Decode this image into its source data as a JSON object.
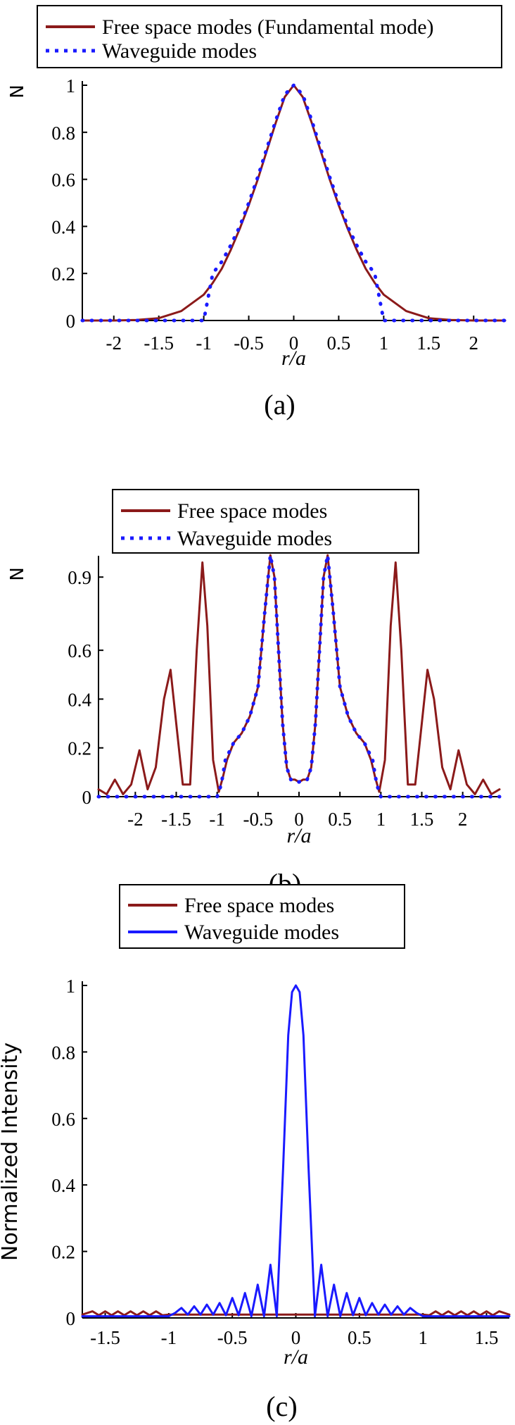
{
  "colors": {
    "free": "#8B1A1A",
    "waveguide": "#1a1aff",
    "axis": "#000000"
  },
  "chart_data": [
    {
      "id": "a",
      "type": "line",
      "panel_label": "(a)",
      "ylabel": "N",
      "xlabel": "r/a",
      "xlim": [
        -2.35,
        2.35
      ],
      "ylim": [
        0,
        1.0
      ],
      "xticks": [
        -2,
        -1.5,
        -1,
        -0.5,
        0,
        0.5,
        1,
        1.5,
        2
      ],
      "yticks": [
        0,
        0.2,
        0.4,
        0.6,
        0.8,
        1
      ],
      "grid": false,
      "legend_position": "top",
      "series": [
        {
          "name": "Free space modes (Fundamental mode)",
          "style": "solid",
          "color": "#8B1A1A",
          "x": [
            -2.35,
            -2.0,
            -1.75,
            -1.5,
            -1.25,
            -1.0,
            -0.9,
            -0.8,
            -0.7,
            -0.6,
            -0.5,
            -0.4,
            -0.3,
            -0.2,
            -0.1,
            0,
            0.1,
            0.2,
            0.3,
            0.4,
            0.5,
            0.6,
            0.7,
            0.8,
            0.9,
            1.0,
            1.25,
            1.5,
            1.75,
            2.0,
            2.35
          ],
          "y": [
            0.0,
            0.0,
            0.002,
            0.01,
            0.04,
            0.11,
            0.16,
            0.22,
            0.3,
            0.39,
            0.49,
            0.6,
            0.72,
            0.84,
            0.95,
            1.0,
            0.95,
            0.84,
            0.72,
            0.6,
            0.49,
            0.39,
            0.3,
            0.22,
            0.16,
            0.11,
            0.04,
            0.01,
            0.002,
            0.0,
            0.0
          ]
        },
        {
          "name": "Waveguide modes",
          "style": "dotted",
          "color": "#1a1aff",
          "x": [
            -2.35,
            -1.5,
            -1.0,
            -1.0,
            -0.9,
            -0.8,
            -0.7,
            -0.6,
            -0.5,
            -0.4,
            -0.3,
            -0.2,
            -0.1,
            0,
            0.1,
            0.2,
            0.3,
            0.4,
            0.5,
            0.6,
            0.7,
            0.8,
            0.9,
            1.0,
            1.0,
            1.5,
            2.35
          ],
          "y": [
            0.0,
            0.0,
            0.0,
            0.0,
            0.2,
            0.25,
            0.32,
            0.4,
            0.5,
            0.61,
            0.73,
            0.85,
            0.96,
            1.0,
            0.96,
            0.85,
            0.73,
            0.61,
            0.5,
            0.4,
            0.32,
            0.25,
            0.2,
            0.0,
            0.0,
            0.0,
            0.0
          ]
        }
      ]
    },
    {
      "id": "b",
      "type": "line",
      "panel_label": "(b)",
      "ylabel": "N",
      "xlabel": "r/a",
      "xlim": [
        -2.45,
        2.45
      ],
      "ylim": [
        0,
        0.97
      ],
      "xticks": [
        -2,
        -1.5,
        -1,
        -0.5,
        0,
        0.5,
        1,
        1.5,
        2
      ],
      "yticks": [
        0,
        0.2,
        0.4,
        0.6,
        0.9
      ],
      "grid": false,
      "legend_position": "top",
      "series": [
        {
          "name": "Free space modes",
          "style": "solid",
          "color": "#8B1A1A",
          "x": [
            -2.45,
            -2.35,
            -2.25,
            -2.15,
            -2.05,
            -1.95,
            -1.85,
            -1.75,
            -1.65,
            -1.57,
            -1.5,
            -1.42,
            -1.33,
            -1.25,
            -1.18,
            -1.12,
            -1.05,
            -0.98,
            -0.93,
            -0.88,
            -0.8,
            -0.7,
            -0.6,
            -0.5,
            -0.42,
            -0.35,
            -0.3,
            -0.25,
            -0.2,
            -0.15,
            -0.1,
            -0.05,
            0,
            0.05,
            0.1,
            0.15,
            0.2,
            0.25,
            0.3,
            0.35,
            0.42,
            0.5,
            0.6,
            0.7,
            0.8,
            0.88,
            0.93,
            0.98,
            1.05,
            1.12,
            1.18,
            1.25,
            1.33,
            1.42,
            1.5,
            1.57,
            1.65,
            1.75,
            1.85,
            1.95,
            2.05,
            2.15,
            2.25,
            2.35,
            2.45
          ],
          "y": [
            0.03,
            0.01,
            0.07,
            0.01,
            0.05,
            0.19,
            0.03,
            0.12,
            0.4,
            0.52,
            0.3,
            0.05,
            0.05,
            0.6,
            0.96,
            0.7,
            0.15,
            0.02,
            0.08,
            0.15,
            0.22,
            0.26,
            0.33,
            0.45,
            0.75,
            0.99,
            0.9,
            0.6,
            0.3,
            0.12,
            0.07,
            0.07,
            0.06,
            0.07,
            0.07,
            0.12,
            0.3,
            0.6,
            0.9,
            0.99,
            0.75,
            0.45,
            0.33,
            0.26,
            0.22,
            0.15,
            0.08,
            0.02,
            0.15,
            0.7,
            0.96,
            0.6,
            0.05,
            0.05,
            0.3,
            0.52,
            0.4,
            0.12,
            0.03,
            0.19,
            0.05,
            0.01,
            0.07,
            0.01,
            0.03
          ]
        },
        {
          "name": "Waveguide modes",
          "style": "dotted",
          "color": "#1a1aff",
          "x": [
            -2.45,
            -1.1,
            -1.0,
            -0.95,
            -0.9,
            -0.8,
            -0.7,
            -0.6,
            -0.5,
            -0.42,
            -0.35,
            -0.3,
            -0.25,
            -0.2,
            -0.15,
            -0.1,
            -0.05,
            0,
            0.05,
            0.1,
            0.15,
            0.2,
            0.25,
            0.3,
            0.35,
            0.42,
            0.5,
            0.6,
            0.7,
            0.8,
            0.9,
            0.95,
            1.0,
            1.1,
            2.45
          ],
          "y": [
            0.0,
            0.0,
            0.0,
            0.05,
            0.15,
            0.22,
            0.26,
            0.33,
            0.45,
            0.75,
            0.99,
            0.9,
            0.6,
            0.3,
            0.12,
            0.07,
            0.07,
            0.06,
            0.07,
            0.07,
            0.12,
            0.3,
            0.6,
            0.9,
            0.99,
            0.75,
            0.45,
            0.33,
            0.26,
            0.22,
            0.15,
            0.05,
            0.0,
            0.0,
            0.0
          ]
        }
      ]
    },
    {
      "id": "c",
      "type": "line",
      "panel_label": "(c)",
      "ylabel": "Normalized Intensity",
      "xlabel": "r/a",
      "xlim": [
        -1.68,
        1.68
      ],
      "ylim": [
        0,
        1.0
      ],
      "xticks": [
        -1.5,
        -1,
        -0.5,
        0,
        0.5,
        1,
        1.5
      ],
      "yticks": [
        0,
        0.2,
        0.4,
        0.6,
        0.8,
        1
      ],
      "grid": false,
      "legend_position": "top",
      "series": [
        {
          "name": "Free space modes",
          "style": "solid",
          "color": "#8B1A1A",
          "x": [
            -1.68,
            -1.6,
            -1.55,
            -1.5,
            -1.45,
            -1.4,
            -1.35,
            -1.3,
            -1.25,
            -1.2,
            -1.15,
            -1.1,
            -1.05,
            -1.0,
            1.0,
            1.05,
            1.1,
            1.15,
            1.2,
            1.25,
            1.3,
            1.35,
            1.4,
            1.45,
            1.5,
            1.55,
            1.6,
            1.68
          ],
          "y": [
            0.01,
            0.02,
            0.008,
            0.02,
            0.008,
            0.02,
            0.008,
            0.02,
            0.008,
            0.02,
            0.008,
            0.02,
            0.008,
            0.01,
            0.01,
            0.008,
            0.02,
            0.008,
            0.02,
            0.008,
            0.02,
            0.008,
            0.02,
            0.008,
            0.02,
            0.008,
            0.02,
            0.01
          ]
        },
        {
          "name": "Waveguide modes",
          "style": "solid",
          "color": "#1a1aff",
          "x": [
            -1.68,
            -1.0,
            -0.95,
            -0.9,
            -0.85,
            -0.8,
            -0.75,
            -0.7,
            -0.65,
            -0.6,
            -0.55,
            -0.5,
            -0.45,
            -0.4,
            -0.35,
            -0.3,
            -0.25,
            -0.2,
            -0.15,
            -0.1,
            -0.06,
            -0.03,
            0,
            0.03,
            0.06,
            0.1,
            0.15,
            0.2,
            0.25,
            0.3,
            0.35,
            0.4,
            0.45,
            0.5,
            0.55,
            0.6,
            0.65,
            0.7,
            0.75,
            0.8,
            0.85,
            0.9,
            0.95,
            1.0,
            1.68
          ],
          "y": [
            0.005,
            0.005,
            0.015,
            0.03,
            0.01,
            0.035,
            0.01,
            0.04,
            0.01,
            0.045,
            0.008,
            0.06,
            0.008,
            0.075,
            0.005,
            0.1,
            0.005,
            0.16,
            0.005,
            0.45,
            0.85,
            0.98,
            1.0,
            0.98,
            0.85,
            0.45,
            0.005,
            0.16,
            0.005,
            0.1,
            0.005,
            0.075,
            0.008,
            0.06,
            0.008,
            0.045,
            0.01,
            0.04,
            0.01,
            0.035,
            0.01,
            0.03,
            0.015,
            0.005,
            0.005
          ]
        }
      ]
    }
  ]
}
